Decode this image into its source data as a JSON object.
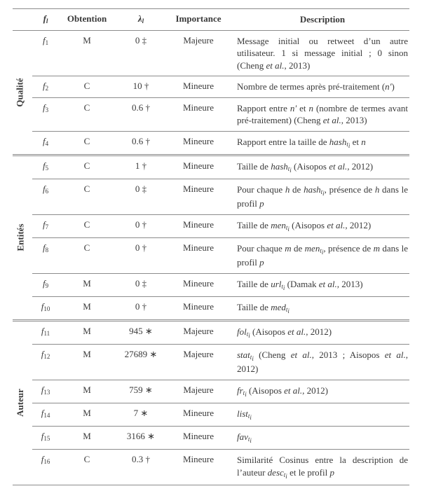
{
  "columns": {
    "f": "f",
    "f_sub": "l",
    "obt": "Obtention",
    "lam": "λ",
    "lam_sub": "l",
    "imp": "Importance",
    "desc": "Description"
  },
  "groups": [
    {
      "label": "Qualité",
      "rows": [
        {
          "f": "f",
          "fs": "1",
          "o": "M",
          "l": "0 ‡",
          "i": "Majeure",
          "d": "Message initial ou retweet d’un autre utilisateur. 1 si message initial ; 0 sinon (Cheng <span class=\"ital\">et al.</span>, 2013)"
        },
        {
          "f": "f",
          "fs": "2",
          "o": "C",
          "l": "10 †",
          "i": "Mineure",
          "d": "Nombre de termes après pré-traitement (<span class=\"ital\">n′</span>)"
        },
        {
          "f": "f",
          "fs": "3",
          "o": "C",
          "l": "0.6 †",
          "i": "Mineure",
          "d": "Rapport entre <span class=\"ital\">n′</span> et <span class=\"ital\">n</span> (nombre de termes avant pré-traitement) (Cheng <span class=\"ital\">et al.</span>, 2013)"
        },
        {
          "f": "f",
          "fs": "4",
          "o": "C",
          "l": "0.6 †",
          "i": "Mineure",
          "d": "Rapport entre la taille de <span class=\"ital\">hash<sub>t<sub>i</sub></sub></span> et <span class=\"ital\">n</span>"
        }
      ]
    },
    {
      "label": "Entités",
      "rows": [
        {
          "f": "f",
          "fs": "5",
          "o": "C",
          "l": "1 †",
          "i": "Mineure",
          "d": "Taille de <span class=\"ital\">hash<sub>t<sub>i</sub></sub></span> (Aisopos <span class=\"ital\">et al.</span>, 2012)"
        },
        {
          "f": "f",
          "fs": "6",
          "o": "C",
          "l": "0 ‡",
          "i": "Mineure",
          "d": "Pour chaque <span class=\"ital\">h</span> de <span class=\"ital\">hash<sub>t<sub>i</sub></sub></span>, présence de <span class=\"ital\">h</span> dans le profil <span class=\"ital\">p</span>"
        },
        {
          "f": "f",
          "fs": "7",
          "o": "C",
          "l": "0 †",
          "i": "Mineure",
          "d": "Taille de <span class=\"ital\">men<sub>t<sub>i</sub></sub></span> (Aisopos <span class=\"ital\">et al.</span>, 2012)"
        },
        {
          "f": "f",
          "fs": "8",
          "o": "C",
          "l": "0 †",
          "i": "Mineure",
          "d": "Pour chaque <span class=\"ital\">m</span> de <span class=\"ital\">men<sub>t<sub>i</sub></sub></span>, présence de <span class=\"ital\">m</span> dans le profil <span class=\"ital\">p</span>"
        },
        {
          "f": "f",
          "fs": "9",
          "o": "M",
          "l": "0 ‡",
          "i": "Mineure",
          "d": "Taille de <span class=\"ital\">url<sub>t<sub>i</sub></sub></span> (Damak <span class=\"ital\">et al.</span>, 2013)"
        },
        {
          "f": "f",
          "fs": "10",
          "o": "M",
          "l": "0 †",
          "i": "Mineure",
          "d": "Taille de <span class=\"ital\">med<sub>t<sub>i</sub></sub></span>"
        }
      ]
    },
    {
      "label": "Auteur",
      "rows": [
        {
          "f": "f",
          "fs": "11",
          "o": "M",
          "l": "945 ∗",
          "i": "Majeure",
          "d": "<span class=\"ital\">fol<sub>t<sub>i</sub></sub></span> (Aisopos <span class=\"ital\">et al.</span>, 2012)"
        },
        {
          "f": "f",
          "fs": "12",
          "o": "M",
          "l": "27689 ∗",
          "i": "Majeure",
          "d": "<span class=\"ital\">stat<sub>t<sub>i</sub></sub></span> (Cheng <span class=\"ital\">et al.</span>, 2013 ; Aisopos <span class=\"ital\">et al.</span>, 2012)"
        },
        {
          "f": "f",
          "fs": "13",
          "o": "M",
          "l": "759 ∗",
          "i": "Majeure",
          "d": "<span class=\"ital\">fr<sub>t<sub>i</sub></sub></span> (Aisopos <span class=\"ital\">et al.</span>, 2012)"
        },
        {
          "f": "f",
          "fs": "14",
          "o": "M",
          "l": "7 ∗",
          "i": "Mineure",
          "d": "<span class=\"ital\">list<sub>t<sub>i</sub></sub></span>"
        },
        {
          "f": "f",
          "fs": "15",
          "o": "M",
          "l": "3166 ∗",
          "i": "Mineure",
          "d": "<span class=\"ital\">fav<sub>t<sub>i</sub></sub></span>"
        },
        {
          "f": "f",
          "fs": "16",
          "o": "C",
          "l": "0.3 †",
          "i": "Mineure",
          "d": "Similarité Cosinus entre la description de l’auteur <span class=\"ital\">desc<sub>t<sub>i</sub></sub></span> et le profil <span class=\"ital\">p</span>"
        }
      ]
    }
  ]
}
